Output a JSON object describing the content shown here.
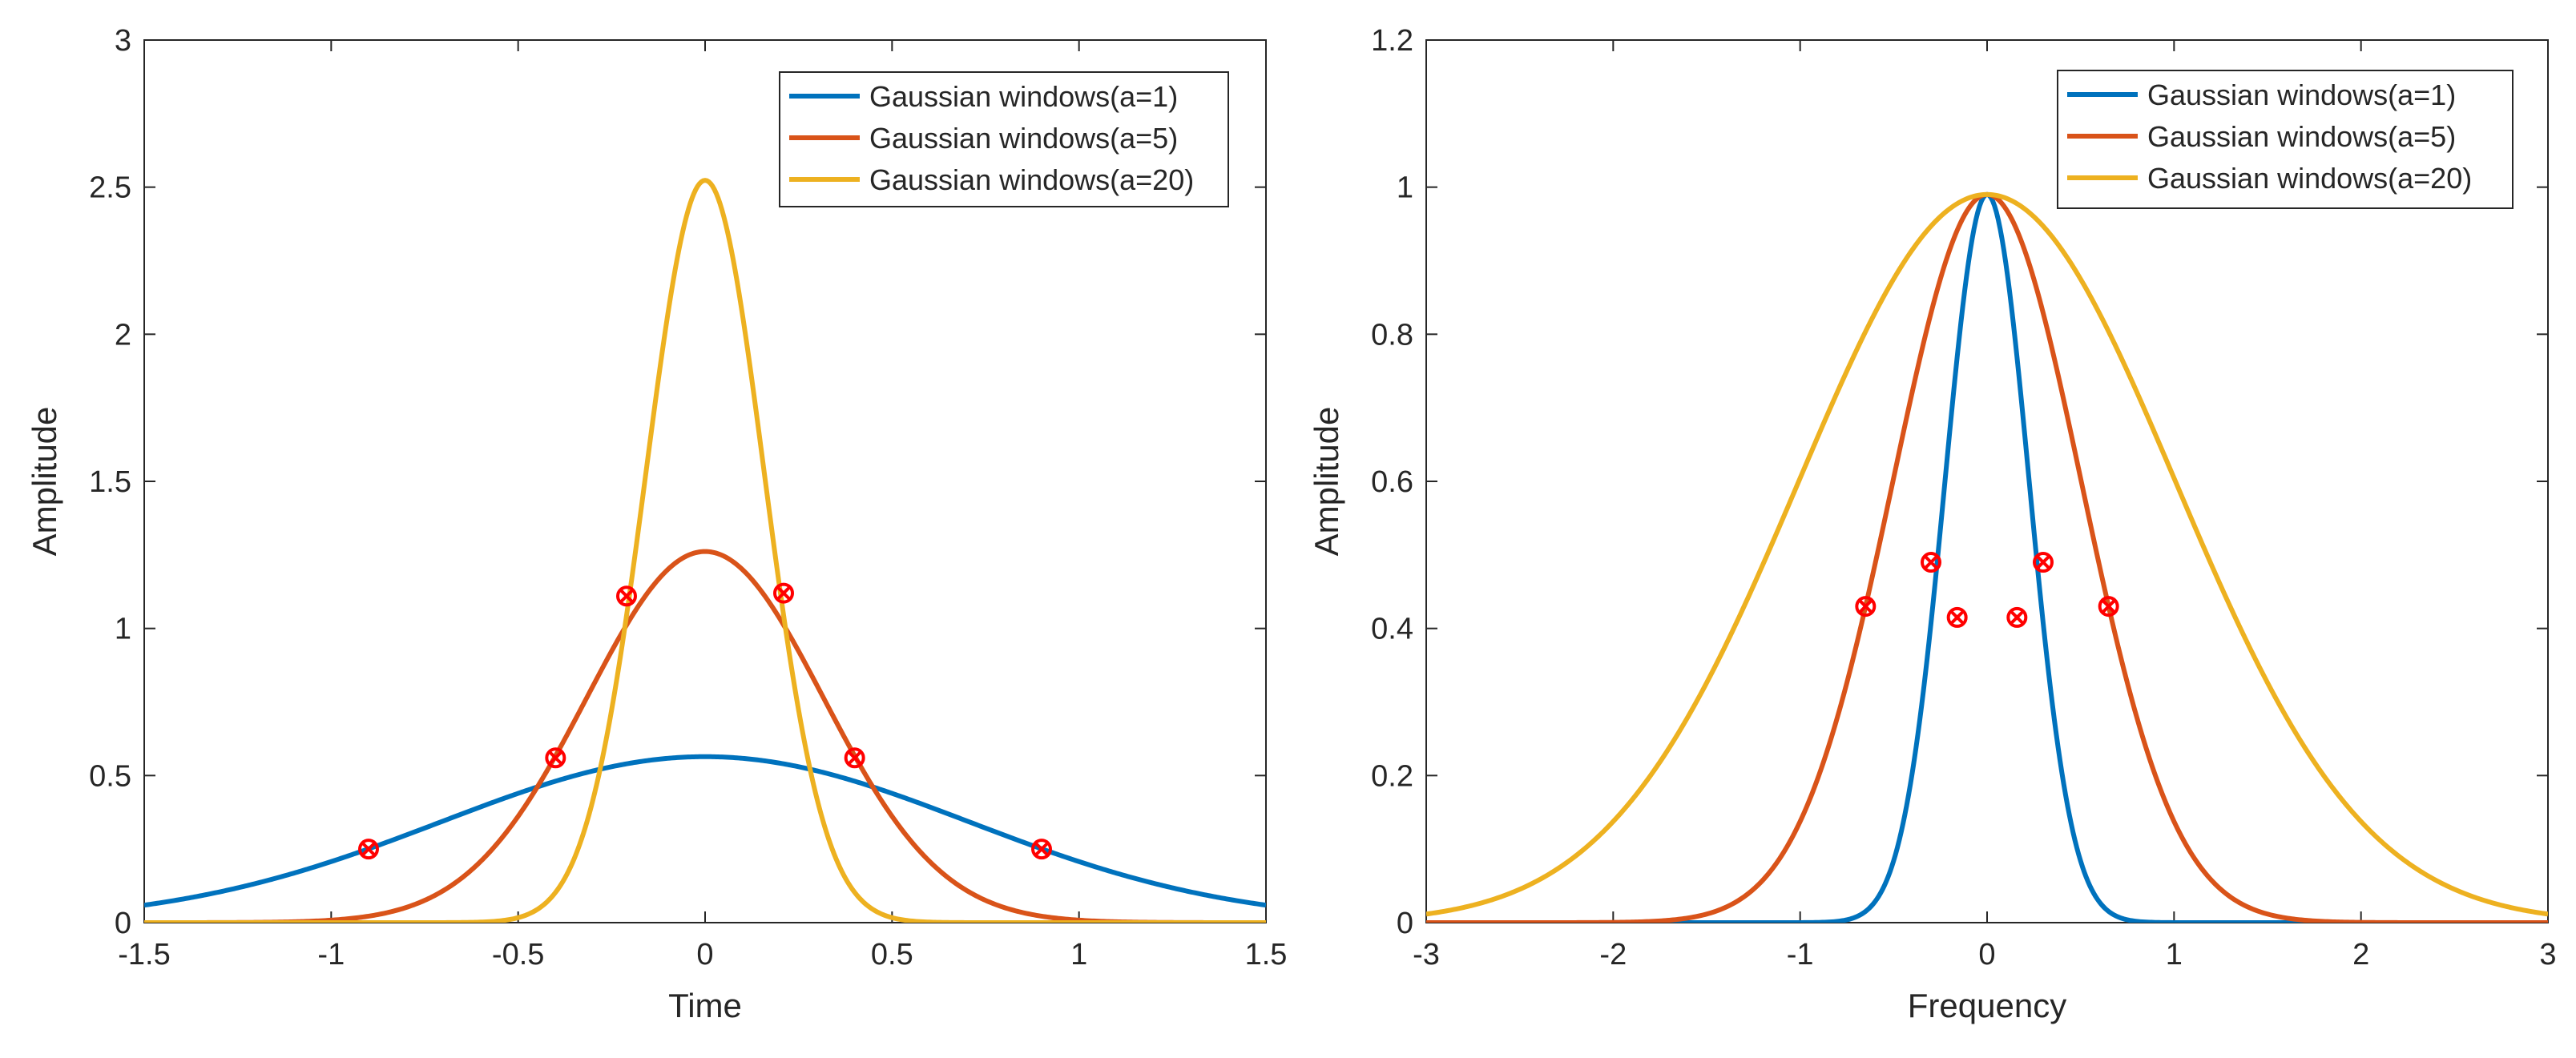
{
  "chart_data": [
    {
      "type": "line",
      "xlabel": "Time",
      "ylabel": "Amplitude",
      "xlim": [
        -1.5,
        1.5
      ],
      "ylim": [
        0,
        3
      ],
      "xticks": [
        -1.5,
        -1,
        -0.5,
        0,
        0.5,
        1,
        1.5
      ],
      "xtick_labels": [
        "-1.5",
        "-1",
        "-0.5",
        "0",
        "0.5",
        "1",
        "1.5"
      ],
      "yticks": [
        0,
        0.5,
        1,
        1.5,
        2,
        2.5,
        3
      ],
      "ytick_labels": [
        "0",
        "0.5",
        "1",
        "1.5",
        "2",
        "2.5",
        "3"
      ],
      "legend_position": "top-right",
      "series": [
        {
          "name": "Gaussian windows(a=1)",
          "a": 1,
          "color": "#0072BD",
          "formula": "sqrt(a/pi)*exp(-a*t^2)",
          "markers": [
            {
              "x": -0.9,
              "y": 0.25
            },
            {
              "x": 0.9,
              "y": 0.25
            }
          ]
        },
        {
          "name": "Gaussian windows(a=5)",
          "a": 5,
          "color": "#D95319",
          "formula": "sqrt(a/pi)*exp(-a*t^2)",
          "markers": [
            {
              "x": -0.4,
              "y": 0.56
            },
            {
              "x": 0.4,
              "y": 0.56
            }
          ]
        },
        {
          "name": "Gaussian windows(a=20)",
          "a": 20,
          "color": "#EDB120",
          "formula": "sqrt(a/pi)*exp(-a*t^2)",
          "markers": [
            {
              "x": -0.21,
              "y": 1.11
            },
            {
              "x": 0.21,
              "y": 1.12
            }
          ]
        }
      ]
    },
    {
      "type": "line",
      "xlabel": "Frequency",
      "ylabel": "Amplitude",
      "xlim": [
        -3,
        3
      ],
      "ylim": [
        0,
        1.2
      ],
      "xticks": [
        -3,
        -2,
        -1,
        0,
        1,
        2,
        3
      ],
      "xtick_labels": [
        "-3",
        "-2",
        "-1",
        "0",
        "1",
        "2",
        "3"
      ],
      "yticks": [
        0,
        0.2,
        0.4,
        0.6,
        0.8,
        1,
        1.2
      ],
      "ytick_labels": [
        "0",
        "0.2",
        "0.4",
        "0.6",
        "0.8",
        "1",
        "1.2"
      ],
      "legend_position": "top-right",
      "series": [
        {
          "name": "Gaussian windows(a=1)",
          "a": 1,
          "color": "#0072BD",
          "formula": "exp(-pi^2*f^2/a)",
          "markers": [
            {
              "x": -0.16,
              "y": 0.415
            },
            {
              "x": 0.16,
              "y": 0.415
            }
          ]
        },
        {
          "name": "Gaussian windows(a=5)",
          "a": 5,
          "color": "#D95319",
          "formula": "exp(-pi^2*f^2/a)",
          "markers": [
            {
              "x": -0.3,
              "y": 0.49
            },
            {
              "x": 0.3,
              "y": 0.49
            }
          ]
        },
        {
          "name": "Gaussian windows(a=20)",
          "a": 20,
          "color": "#EDB120",
          "formula": "exp(-pi^2*f^2/a)",
          "markers": [
            {
              "x": -0.65,
              "y": 0.43
            },
            {
              "x": 0.65,
              "y": 0.43
            }
          ]
        }
      ],
      "peak_value": 0.99
    }
  ],
  "marker_color": "#FF0000"
}
